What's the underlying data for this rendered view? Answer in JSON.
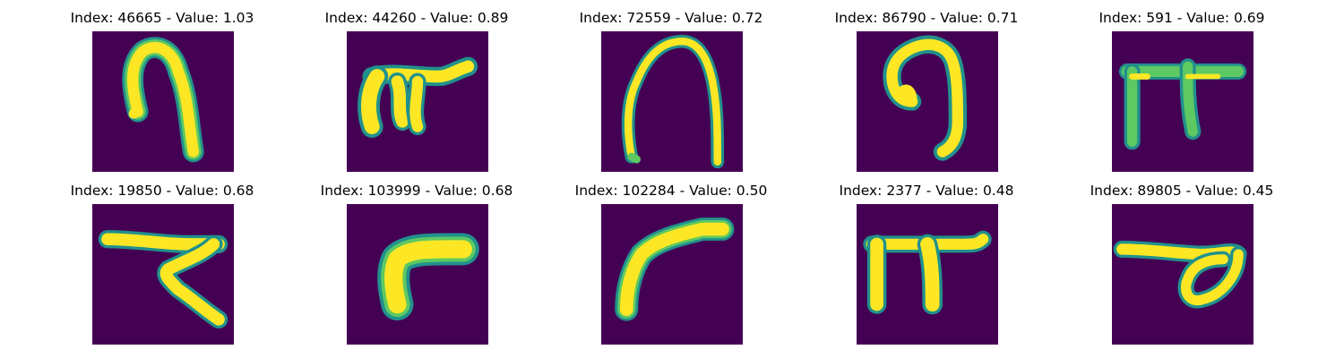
{
  "figure": {
    "background": "#ffffff",
    "colormap": "viridis",
    "colors": {
      "image_background": "#440154",
      "stroke_edge": "#21918c",
      "stroke_mid": "#5ec962",
      "stroke_core": "#fde725"
    }
  },
  "panels": [
    {
      "title": "Index: 46665 - Value: 1.03",
      "index": 46665,
      "value": 1.03
    },
    {
      "title": "Index: 44260 - Value: 0.89",
      "index": 44260,
      "value": 0.89
    },
    {
      "title": "Index: 72559 - Value: 0.72",
      "index": 72559,
      "value": 0.72
    },
    {
      "title": "Index: 86790 - Value: 0.71",
      "index": 86790,
      "value": 0.71
    },
    {
      "title": "Index: 591 - Value: 0.69",
      "index": 591,
      "value": 0.69
    },
    {
      "title": "Index: 19850 - Value: 0.68",
      "index": 19850,
      "value": 0.68
    },
    {
      "title": "Index: 103999 - Value: 0.68",
      "index": 103999,
      "value": 0.68
    },
    {
      "title": "Index: 102284 - Value: 0.50",
      "index": 102284,
      "value": 0.5
    },
    {
      "title": "Index: 2377 - Value: 0.48",
      "index": 2377,
      "value": 0.48
    },
    {
      "title": "Index: 89805 - Value: 0.45",
      "index": 89805,
      "value": 0.45
    }
  ]
}
